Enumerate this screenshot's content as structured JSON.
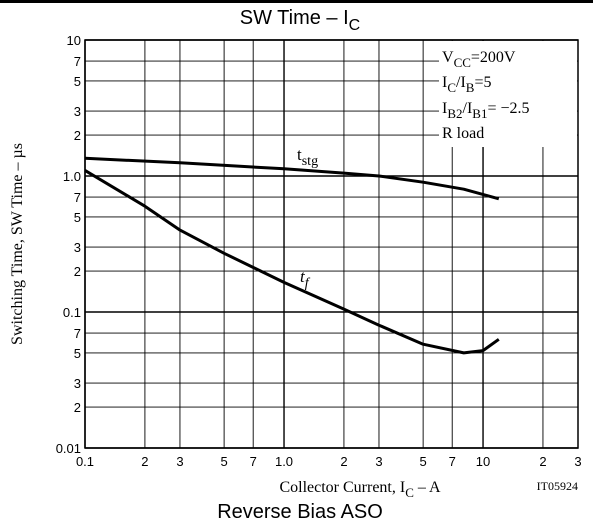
{
  "chart_data": {
    "type": "line",
    "title": [
      {
        "text": "SW Time  – I"
      },
      {
        "text": "C",
        "sub": true
      }
    ],
    "xlabel": [
      {
        "text": "Collector Current, I"
      },
      {
        "text": "C",
        "sub": true
      },
      {
        "text": "  –  A"
      }
    ],
    "ylabel": "Switching Time, SW Time  –  µs",
    "figure_id": "IT05924",
    "next_title": "Reverse Bias ASO",
    "xscale": "log",
    "yscale": "log",
    "grid": true,
    "xlim": [
      0.1,
      30
    ],
    "ylim": [
      0.01,
      10
    ],
    "xticks": [
      0.1,
      {
        "value": 0.2,
        "label": "2"
      },
      {
        "value": 0.3,
        "label": "3"
      },
      {
        "value": 0.5,
        "label": "5"
      },
      {
        "value": 0.7,
        "label": "7"
      },
      {
        "value": 1,
        "label": "1.0"
      },
      2,
      3,
      5,
      7,
      10,
      {
        "value": 20,
        "label": "2"
      },
      {
        "value": 30,
        "label": "3"
      }
    ],
    "yticks": [
      0.01,
      {
        "value": 0.02,
        "label": "2"
      },
      {
        "value": 0.03,
        "label": "3"
      },
      {
        "value": 0.05,
        "label": "5"
      },
      {
        "value": 0.07,
        "label": "7"
      },
      0.1,
      {
        "value": 0.2,
        "label": "2"
      },
      {
        "value": 0.3,
        "label": "3"
      },
      {
        "value": 0.5,
        "label": "5"
      },
      {
        "value": 0.7,
        "label": "7"
      },
      {
        "value": 1,
        "label": "1.0"
      },
      2,
      3,
      5,
      7,
      10
    ],
    "annotations": [
      [
        {
          "text": "V"
        },
        {
          "text": "CC",
          "sub": true
        },
        {
          "text": "=200V"
        }
      ],
      [
        {
          "text": "I"
        },
        {
          "text": "C",
          "sub": true
        },
        {
          "text": "/I"
        },
        {
          "text": "B",
          "sub": true
        },
        {
          "text": "=5"
        }
      ],
      [
        {
          "text": "I"
        },
        {
          "text": "B2",
          "sub": true
        },
        {
          "text": "/I"
        },
        {
          "text": "B1",
          "sub": true
        },
        {
          "text": "= −2.5"
        }
      ],
      [
        {
          "text": "R load"
        }
      ]
    ],
    "series": [
      {
        "label": [
          {
            "text": "t"
          },
          {
            "text": "stg",
            "sub": true
          }
        ],
        "color": "#000000",
        "x": [
          0.1,
          0.3,
          1,
          2,
          3,
          5,
          8,
          12
        ],
        "values": [
          1.35,
          1.25,
          1.13,
          1.05,
          1.0,
          0.9,
          0.8,
          0.68
        ]
      },
      {
        "label": [
          {
            "text": "t"
          },
          {
            "text": "f",
            "sub": true
          }
        ],
        "color": "#000000",
        "x": [
          0.1,
          0.2,
          0.3,
          0.5,
          1,
          2,
          3,
          5,
          8,
          10,
          12
        ],
        "values": [
          1.1,
          0.6,
          0.4,
          0.27,
          0.165,
          0.105,
          0.08,
          0.058,
          0.05,
          0.052,
          0.063
        ]
      }
    ]
  }
}
